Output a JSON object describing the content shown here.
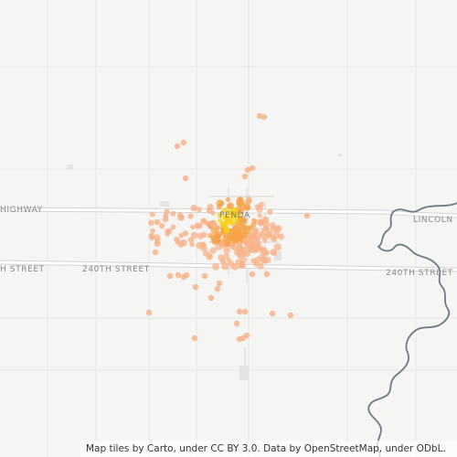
{
  "map": {
    "roads": {
      "highway_label_left": "HIGHWAY",
      "highway_label_right": "LINCOLN",
      "street_label_left": "240TH STREET",
      "street_label_left_partial": "H STREET",
      "street_label_right": "240TH STREET"
    },
    "town_label": "PENDA",
    "colors": {
      "background": "#f5f5f3",
      "road": "#ffffff",
      "road_casing": "#d9d9d9",
      "river": "#6d7b87",
      "point_light": "#f8b38a",
      "point_mid": "#f7a34a",
      "point_hot": "#f6d21a"
    },
    "attribution": "Map tiles by Carto, under CC BY 3.0. Data by OpenStreetMap, under ODbL."
  }
}
